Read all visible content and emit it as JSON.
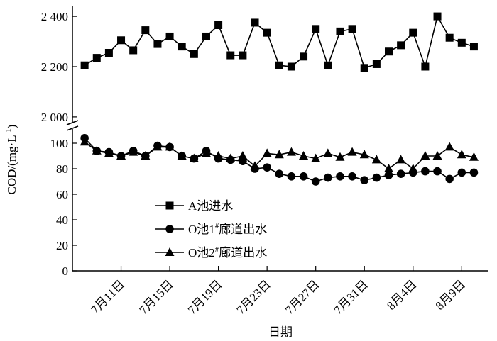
{
  "chart_data": {
    "type": "line",
    "xlabel": "日期",
    "ylabel": "COD/(mg·L-1)",
    "ylabel_parts": {
      "main": "COD/(mg·L",
      "sup": "-1",
      "close": ")"
    },
    "x_tick_labels": [
      "7月11日",
      "7月15日",
      "7月19日",
      "7月23日",
      "7月27日",
      "7月31日",
      "8月4日",
      "8月9日"
    ],
    "x_tick_days": [
      11,
      15,
      19,
      23,
      27,
      31,
      35,
      39
    ],
    "x_domain": [
      7,
      41.2
    ],
    "x_axis_note": "x values are day numbers counted from July 1 (e.g. 32 = Aug 1)",
    "axis_break": true,
    "upper_axis": {
      "ylim": [
        1980,
        2420
      ],
      "ticks": [
        2000,
        2200,
        2400
      ],
      "tick_labels": [
        "2 000",
        "2 200",
        "2 400"
      ]
    },
    "lower_axis": {
      "ylim": [
        0,
        110
      ],
      "ticks": [
        0,
        20,
        40,
        60,
        80,
        100
      ],
      "tick_labels": [
        "0",
        "20",
        "40",
        "60",
        "80",
        "100"
      ]
    },
    "x": [
      8,
      9,
      10,
      11,
      12,
      13,
      14,
      15,
      16,
      17,
      18,
      19,
      20,
      21,
      22,
      23,
      24,
      25,
      26,
      27,
      28,
      29,
      30,
      31,
      32,
      33,
      34,
      35,
      36,
      37,
      38,
      39,
      40
    ],
    "series": [
      {
        "name": "A池进水",
        "marker": "square",
        "axis": "upper",
        "values": [
          2205,
          2235,
          2255,
          2305,
          2265,
          2345,
          2290,
          2320,
          2280,
          2250,
          2320,
          2365,
          2245,
          2245,
          2375,
          2335,
          2205,
          2200,
          2240,
          2350,
          2205,
          2340,
          2350,
          2195,
          2210,
          2260,
          2285,
          2335,
          2200,
          2400,
          2315,
          2295,
          2280
        ]
      },
      {
        "name": "O池1#廊道出水",
        "name_parts": {
          "main": "O池1",
          "sup": "#",
          "rest": "廊道出水"
        },
        "marker": "circle",
        "axis": "lower",
        "values": [
          104,
          94,
          93,
          90,
          94,
          90,
          98,
          97,
          90,
          88,
          94,
          88,
          87,
          86,
          80,
          81,
          76,
          74,
          74,
          70,
          73,
          74,
          74,
          71,
          73,
          75,
          76,
          77,
          78,
          78,
          72,
          77,
          77
        ]
      },
      {
        "name": "O池2#廊道出水",
        "name_parts": {
          "main": "O池2",
          "sup": "#",
          "rest": "廊道出水"
        },
        "marker": "triangle",
        "axis": "lower",
        "values": [
          101,
          94,
          92,
          90,
          93,
          90,
          97,
          97,
          90,
          88,
          92,
          90,
          88,
          90,
          82,
          92,
          91,
          93,
          90,
          88,
          92,
          89,
          93,
          91,
          87,
          80,
          87,
          80,
          90,
          90,
          97,
          91,
          89
        ]
      }
    ],
    "legend_position": "center-left",
    "grid": false,
    "colors": {
      "line": "#000000",
      "background": "#ffffff"
    }
  }
}
